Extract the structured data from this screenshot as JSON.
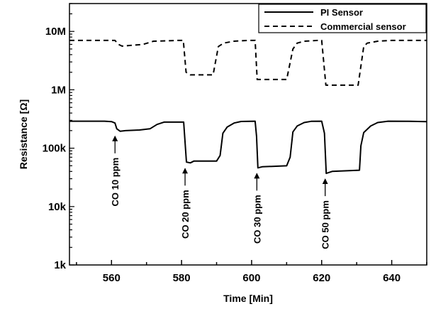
{
  "chart_data": {
    "type": "line",
    "title": "",
    "xlabel": "Time [Min]",
    "ylabel": "Resistance [Ω]",
    "x_axis": {
      "min": 548,
      "max": 650,
      "ticks": [
        560,
        580,
        600,
        620,
        640
      ],
      "tick_labels": [
        "560",
        "580",
        "600",
        "620",
        "640"
      ]
    },
    "y_axis": {
      "scale": "log",
      "min": 1000,
      "max": 30000000,
      "ticks": [
        1000,
        10000,
        100000,
        1000000,
        10000000
      ],
      "tick_labels": [
        "1k",
        "10k",
        "100k",
        "1M",
        "10M"
      ]
    },
    "legend": {
      "position": "top-right",
      "entries": [
        "PI Sensor",
        "Commercial sensor"
      ]
    },
    "series": [
      {
        "name": "PI Sensor",
        "line_style": "solid",
        "color": "#000000",
        "points": [
          [
            548,
            290000
          ],
          [
            558,
            290000
          ],
          [
            560,
            285000
          ],
          [
            561,
            270000
          ],
          [
            561.5,
            215000
          ],
          [
            562.5,
            195000
          ],
          [
            564,
            200000
          ],
          [
            568,
            205000
          ],
          [
            571,
            215000
          ],
          [
            573,
            255000
          ],
          [
            575,
            280000
          ],
          [
            580,
            280000
          ],
          [
            580.6,
            280000
          ],
          [
            581.4,
            58000
          ],
          [
            582.5,
            56000
          ],
          [
            583.5,
            60000
          ],
          [
            590,
            60000
          ],
          [
            591,
            75000
          ],
          [
            591.8,
            180000
          ],
          [
            593,
            230000
          ],
          [
            595,
            270000
          ],
          [
            597,
            287000
          ],
          [
            601,
            290000
          ],
          [
            601.4,
            160000
          ],
          [
            601.8,
            46000
          ],
          [
            603,
            48000
          ],
          [
            610,
            50000
          ],
          [
            611,
            70000
          ],
          [
            611.8,
            190000
          ],
          [
            613,
            240000
          ],
          [
            615,
            275000
          ],
          [
            617,
            288000
          ],
          [
            620,
            290000
          ],
          [
            620.8,
            180000
          ],
          [
            621.3,
            37000
          ],
          [
            623,
            40000
          ],
          [
            630.8,
            42000
          ],
          [
            631.2,
            110000
          ],
          [
            632,
            185000
          ],
          [
            634,
            240000
          ],
          [
            636,
            275000
          ],
          [
            639,
            290000
          ],
          [
            645,
            288000
          ],
          [
            650,
            285000
          ]
        ]
      },
      {
        "name": "Commercial sensor",
        "line_style": "dashed",
        "color": "#000000",
        "points": [
          [
            548,
            7000000
          ],
          [
            561,
            7000000
          ],
          [
            562,
            6000000
          ],
          [
            563,
            5600000
          ],
          [
            566,
            5800000
          ],
          [
            569,
            6000000
          ],
          [
            572,
            6800000
          ],
          [
            579,
            7000000
          ],
          [
            580.5,
            7000000
          ],
          [
            581.3,
            2000000
          ],
          [
            582.5,
            1800000
          ],
          [
            589,
            1800000
          ],
          [
            590.5,
            5500000
          ],
          [
            592,
            6300000
          ],
          [
            595,
            6800000
          ],
          [
            599,
            7000000
          ],
          [
            601,
            7000000
          ],
          [
            601.6,
            1500000
          ],
          [
            610,
            1500000
          ],
          [
            611.8,
            5000000
          ],
          [
            613,
            6300000
          ],
          [
            615,
            6800000
          ],
          [
            619,
            7000000
          ],
          [
            620,
            7000000
          ],
          [
            621.2,
            1200000
          ],
          [
            630.4,
            1200000
          ],
          [
            632,
            5500000
          ],
          [
            633,
            6300000
          ],
          [
            636,
            6800000
          ],
          [
            640,
            7000000
          ],
          [
            650,
            7000000
          ]
        ]
      }
    ],
    "annotations": [
      {
        "label": "CO 10 ppm",
        "x": 561,
        "y_arrow": 200000
      },
      {
        "label": "CO 20 ppm",
        "x": 581,
        "y_arrow": 56000
      },
      {
        "label": "CO 30 ppm",
        "x": 601.5,
        "y_arrow": 46000
      },
      {
        "label": "CO 50 ppm",
        "x": 621,
        "y_arrow": 37000
      }
    ]
  }
}
